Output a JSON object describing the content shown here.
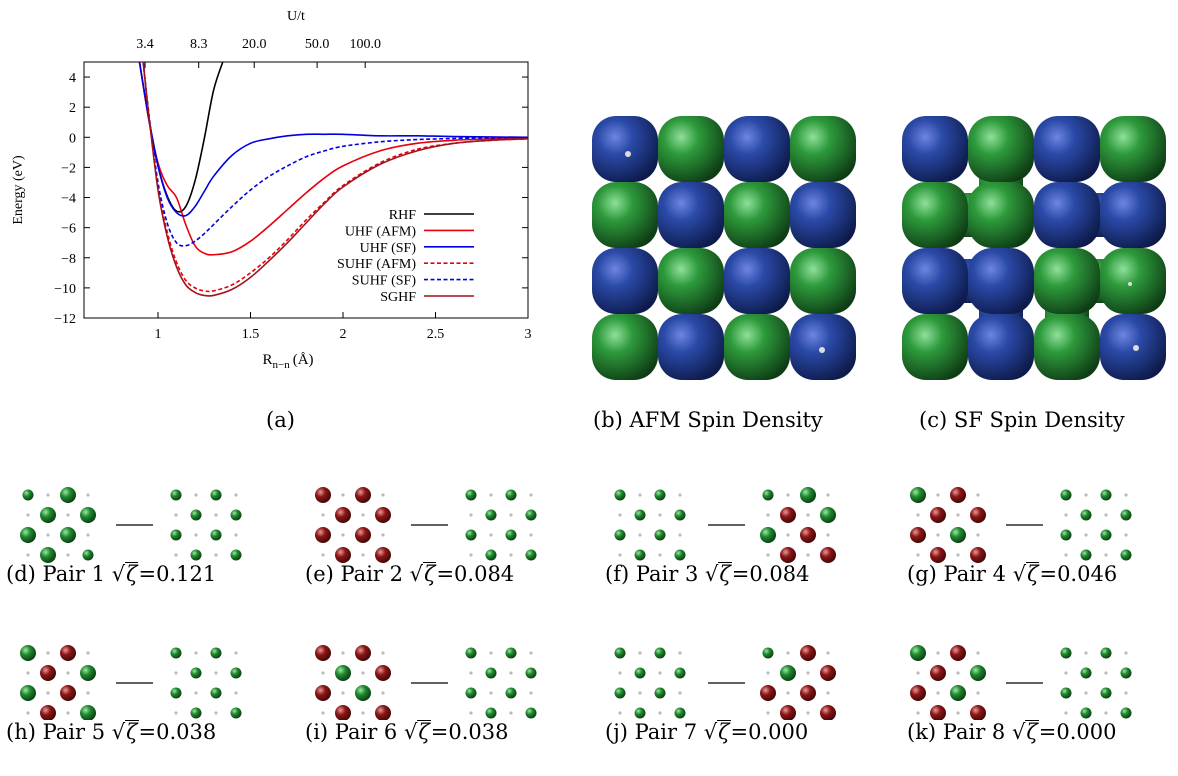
{
  "chart_data": {
    "type": "line",
    "xlabel_main": "R",
    "xlabel_sub": "n−n",
    "xlabel_unit": "(Å)",
    "ylabel": "Energy (eV)",
    "top_axis_label": "U/t",
    "top_ticks": [
      {
        "label": "3.4",
        "x": 0.93
      },
      {
        "label": "8.3",
        "x": 1.22
      },
      {
        "label": "20.0",
        "x": 1.52
      },
      {
        "label": "50.0",
        "x": 1.86
      },
      {
        "label": "100.0",
        "x": 2.12
      }
    ],
    "xlim": [
      0.6,
      3.0
    ],
    "ylim": [
      -12,
      5
    ],
    "xticks": [
      1,
      1.5,
      2,
      2.5,
      3
    ],
    "xtick_labels": [
      "1",
      "1.5",
      "2",
      "2.5",
      "3"
    ],
    "yticks": [
      -12,
      -10,
      -8,
      -6,
      -4,
      -2,
      0,
      2,
      4
    ],
    "ytick_labels": [
      "−12",
      "−10",
      "−8",
      "−6",
      "−4",
      "−2",
      "0",
      "2",
      "4"
    ],
    "legend_position": "bottom-right",
    "series": [
      {
        "name": "RHF",
        "color": "#000000",
        "dash": "solid",
        "x": [
          0.9,
          0.95,
          1.0,
          1.05,
          1.1,
          1.15,
          1.2,
          1.25,
          1.3,
          1.35
        ],
        "y": [
          5.0,
          1.2,
          -1.9,
          -3.9,
          -4.9,
          -4.6,
          -2.9,
          -0.1,
          3.1,
          5.0
        ]
      },
      {
        "name": "UHF (AFM)",
        "color": "#e8000b",
        "dash": "solid",
        "x": [
          0.9,
          0.95,
          1.0,
          1.05,
          1.1,
          1.15,
          1.2,
          1.25,
          1.3,
          1.4,
          1.5,
          1.6,
          1.7,
          1.8,
          1.9,
          2.0,
          2.2,
          2.4,
          2.6,
          2.8,
          3.0
        ],
        "y": [
          5.0,
          1.2,
          -1.7,
          -3.2,
          -4.0,
          -5.8,
          -7.2,
          -7.7,
          -7.8,
          -7.6,
          -6.9,
          -5.9,
          -4.8,
          -3.7,
          -2.7,
          -1.9,
          -0.9,
          -0.4,
          -0.2,
          -0.1,
          0.0
        ]
      },
      {
        "name": "UHF (SF)",
        "color": "#0000e0",
        "dash": "solid",
        "x": [
          0.9,
          0.95,
          1.0,
          1.05,
          1.1,
          1.15,
          1.2,
          1.25,
          1.3,
          1.4,
          1.5,
          1.6,
          1.7,
          1.8,
          1.9,
          2.0,
          2.2,
          2.4,
          2.6,
          3.0
        ],
        "y": [
          5.0,
          1.3,
          -1.9,
          -4.0,
          -5.0,
          -5.2,
          -4.6,
          -3.6,
          -2.6,
          -1.2,
          -0.4,
          -0.1,
          0.1,
          0.2,
          0.2,
          0.2,
          0.1,
          0.1,
          0.05,
          0.0
        ]
      },
      {
        "name": "SUHF (AFM)",
        "color": "#e8000b",
        "dash": "dashed",
        "x": [
          0.92,
          0.95,
          1.0,
          1.05,
          1.1,
          1.15,
          1.2,
          1.25,
          1.3,
          1.4,
          1.5,
          1.6,
          1.7,
          1.8,
          1.9,
          2.0,
          2.2,
          2.4,
          2.6,
          2.8,
          3.0
        ],
        "y": [
          5.0,
          1.6,
          -3.3,
          -6.3,
          -8.3,
          -9.5,
          -10.0,
          -10.2,
          -10.2,
          -9.8,
          -9.0,
          -8.0,
          -6.8,
          -5.5,
          -4.3,
          -3.2,
          -1.7,
          -0.8,
          -0.4,
          -0.2,
          -0.1
        ]
      },
      {
        "name": "SUHF (SF)",
        "color": "#0000e0",
        "dash": "dashed",
        "x": [
          0.92,
          0.95,
          1.0,
          1.05,
          1.1,
          1.15,
          1.2,
          1.25,
          1.3,
          1.4,
          1.5,
          1.6,
          1.7,
          1.8,
          1.9,
          2.0,
          2.2,
          2.4,
          2.6,
          2.8,
          3.0
        ],
        "y": [
          5.0,
          1.6,
          -3.0,
          -5.7,
          -7.0,
          -7.2,
          -6.9,
          -6.4,
          -5.8,
          -4.6,
          -3.5,
          -2.6,
          -1.9,
          -1.3,
          -0.9,
          -0.6,
          -0.3,
          -0.15,
          -0.08,
          -0.04,
          0.0
        ]
      },
      {
        "name": "SGHF",
        "color": "#a0141e",
        "dash": "solid",
        "x": [
          0.92,
          0.95,
          1.0,
          1.05,
          1.1,
          1.15,
          1.2,
          1.25,
          1.3,
          1.4,
          1.5,
          1.6,
          1.7,
          1.8,
          1.9,
          2.0,
          2.2,
          2.4,
          2.6,
          2.8,
          3.0
        ],
        "y": [
          5.0,
          1.5,
          -3.5,
          -6.6,
          -8.6,
          -9.8,
          -10.3,
          -10.5,
          -10.5,
          -10.1,
          -9.3,
          -8.2,
          -7.0,
          -5.7,
          -4.4,
          -3.3,
          -1.8,
          -0.9,
          -0.4,
          -0.2,
          -0.1
        ]
      }
    ]
  },
  "captions": {
    "a": "(a)",
    "b": "(b) AFM Spin Density",
    "c": "(c) SF Spin Density",
    "pairs": [
      {
        "prefix": "(d) Pair 1",
        "value": "0.121"
      },
      {
        "prefix": "(e) Pair 2",
        "value": "0.084"
      },
      {
        "prefix": "(f) Pair 3",
        "value": "0.084"
      },
      {
        "prefix": "(g) Pair 4",
        "value": "0.046"
      },
      {
        "prefix": "(h) Pair 5",
        "value": "0.038"
      },
      {
        "prefix": "(i) Pair 6",
        "value": "0.038"
      },
      {
        "prefix": "(j) Pair 7",
        "value": "0.000"
      },
      {
        "prefix": "(k) Pair 8",
        "value": "0.000"
      }
    ],
    "sqrt_symbol": "√",
    "zeta": "ζ",
    "equals": "="
  },
  "spin_colors": {
    "blue": "#2b4aa8",
    "green": "#2e9a3c",
    "red": "#8c1616"
  },
  "afm_grid": [
    [
      "b",
      "g",
      "b",
      "g"
    ],
    [
      "g",
      "b",
      "g",
      "b"
    ],
    [
      "b",
      "g",
      "b",
      "g"
    ],
    [
      "g",
      "b",
      "g",
      "b"
    ]
  ],
  "sf_grid": [
    [
      "b",
      "g",
      "b",
      "g"
    ],
    [
      "g",
      "g",
      "b",
      "b"
    ],
    [
      "b",
      "b",
      "g",
      "g"
    ],
    [
      "g",
      "b",
      "g",
      "b"
    ]
  ]
}
